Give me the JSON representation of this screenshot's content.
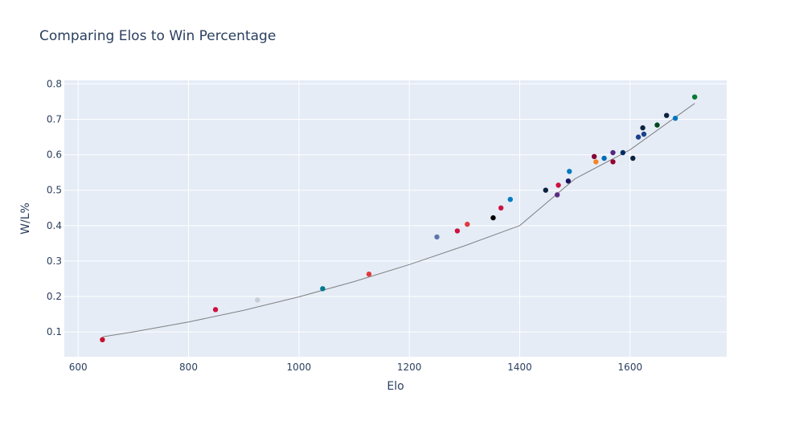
{
  "chart_data": {
    "type": "scatter",
    "title": "Comparing Elos to Win Percentage",
    "xlabel": "Elo",
    "ylabel": "W/L%",
    "xlim": [
      575,
      1775
    ],
    "ylim": [
      0.03,
      0.81
    ],
    "xticks": [
      600,
      800,
      1000,
      1200,
      1400,
      1600
    ],
    "yticks": [
      0.1,
      0.2,
      0.3,
      0.4,
      0.5,
      0.6,
      0.7,
      0.8
    ],
    "grid": true,
    "legend": "none",
    "colors": {
      "plot_bg": "#e5ecf6",
      "grid": "#ffffff",
      "trend_line": "#808080",
      "text": "#2a3f5f"
    },
    "points": [
      {
        "x": 644,
        "y": 0.078,
        "color": "#c8102e"
      },
      {
        "x": 849,
        "y": 0.163,
        "color": "#ce1141"
      },
      {
        "x": 925,
        "y": 0.19,
        "color": "#c4ced4"
      },
      {
        "x": 1043,
        "y": 0.222,
        "color": "#00788c"
      },
      {
        "x": 1127,
        "y": 0.263,
        "color": "#e03a3e"
      },
      {
        "x": 1250,
        "y": 0.368,
        "color": "#5d76a9"
      },
      {
        "x": 1287,
        "y": 0.385,
        "color": "#ce1141"
      },
      {
        "x": 1305,
        "y": 0.404,
        "color": "#e03a3e"
      },
      {
        "x": 1352,
        "y": 0.422,
        "color": "#000000"
      },
      {
        "x": 1366,
        "y": 0.45,
        "color": "#ce1141"
      },
      {
        "x": 1383,
        "y": 0.474,
        "color": "#007ac1"
      },
      {
        "x": 1447,
        "y": 0.5,
        "color": "#0c2340"
      },
      {
        "x": 1468,
        "y": 0.487,
        "color": "#5a2d81"
      },
      {
        "x": 1470,
        "y": 0.514,
        "color": "#ce1141"
      },
      {
        "x": 1488,
        "y": 0.526,
        "color": "#1d1160"
      },
      {
        "x": 1490,
        "y": 0.553,
        "color": "#007ac1"
      },
      {
        "x": 1535,
        "y": 0.595,
        "color": "#860038"
      },
      {
        "x": 1538,
        "y": 0.58,
        "color": "#f58426"
      },
      {
        "x": 1553,
        "y": 0.59,
        "color": "#006bb6"
      },
      {
        "x": 1569,
        "y": 0.606,
        "color": "#552583"
      },
      {
        "x": 1569,
        "y": 0.58,
        "color": "#98002e"
      },
      {
        "x": 1587,
        "y": 0.606,
        "color": "#002d62"
      },
      {
        "x": 1605,
        "y": 0.59,
        "color": "#0e2240"
      },
      {
        "x": 1615,
        "y": 0.65,
        "color": "#1d428a"
      },
      {
        "x": 1623,
        "y": 0.676,
        "color": "#0e2240"
      },
      {
        "x": 1625,
        "y": 0.658,
        "color": "#1d428a"
      },
      {
        "x": 1649,
        "y": 0.684,
        "color": "#00471b"
      },
      {
        "x": 1666,
        "y": 0.711,
        "color": "#0c2340"
      },
      {
        "x": 1682,
        "y": 0.703,
        "color": "#0077c0"
      },
      {
        "x": 1717,
        "y": 0.763,
        "color": "#007a33"
      }
    ],
    "trend_line": [
      {
        "x": 644,
        "y": 0.086
      },
      {
        "x": 700,
        "y": 0.1
      },
      {
        "x": 800,
        "y": 0.128
      },
      {
        "x": 900,
        "y": 0.161
      },
      {
        "x": 1000,
        "y": 0.199
      },
      {
        "x": 1100,
        "y": 0.242
      },
      {
        "x": 1200,
        "y": 0.29
      },
      {
        "x": 1300,
        "y": 0.343
      },
      {
        "x": 1400,
        "y": 0.4
      },
      {
        "x": 1500,
        "y": 0.532
      },
      {
        "x": 1600,
        "y": 0.614
      },
      {
        "x": 1717,
        "y": 0.745
      }
    ]
  }
}
